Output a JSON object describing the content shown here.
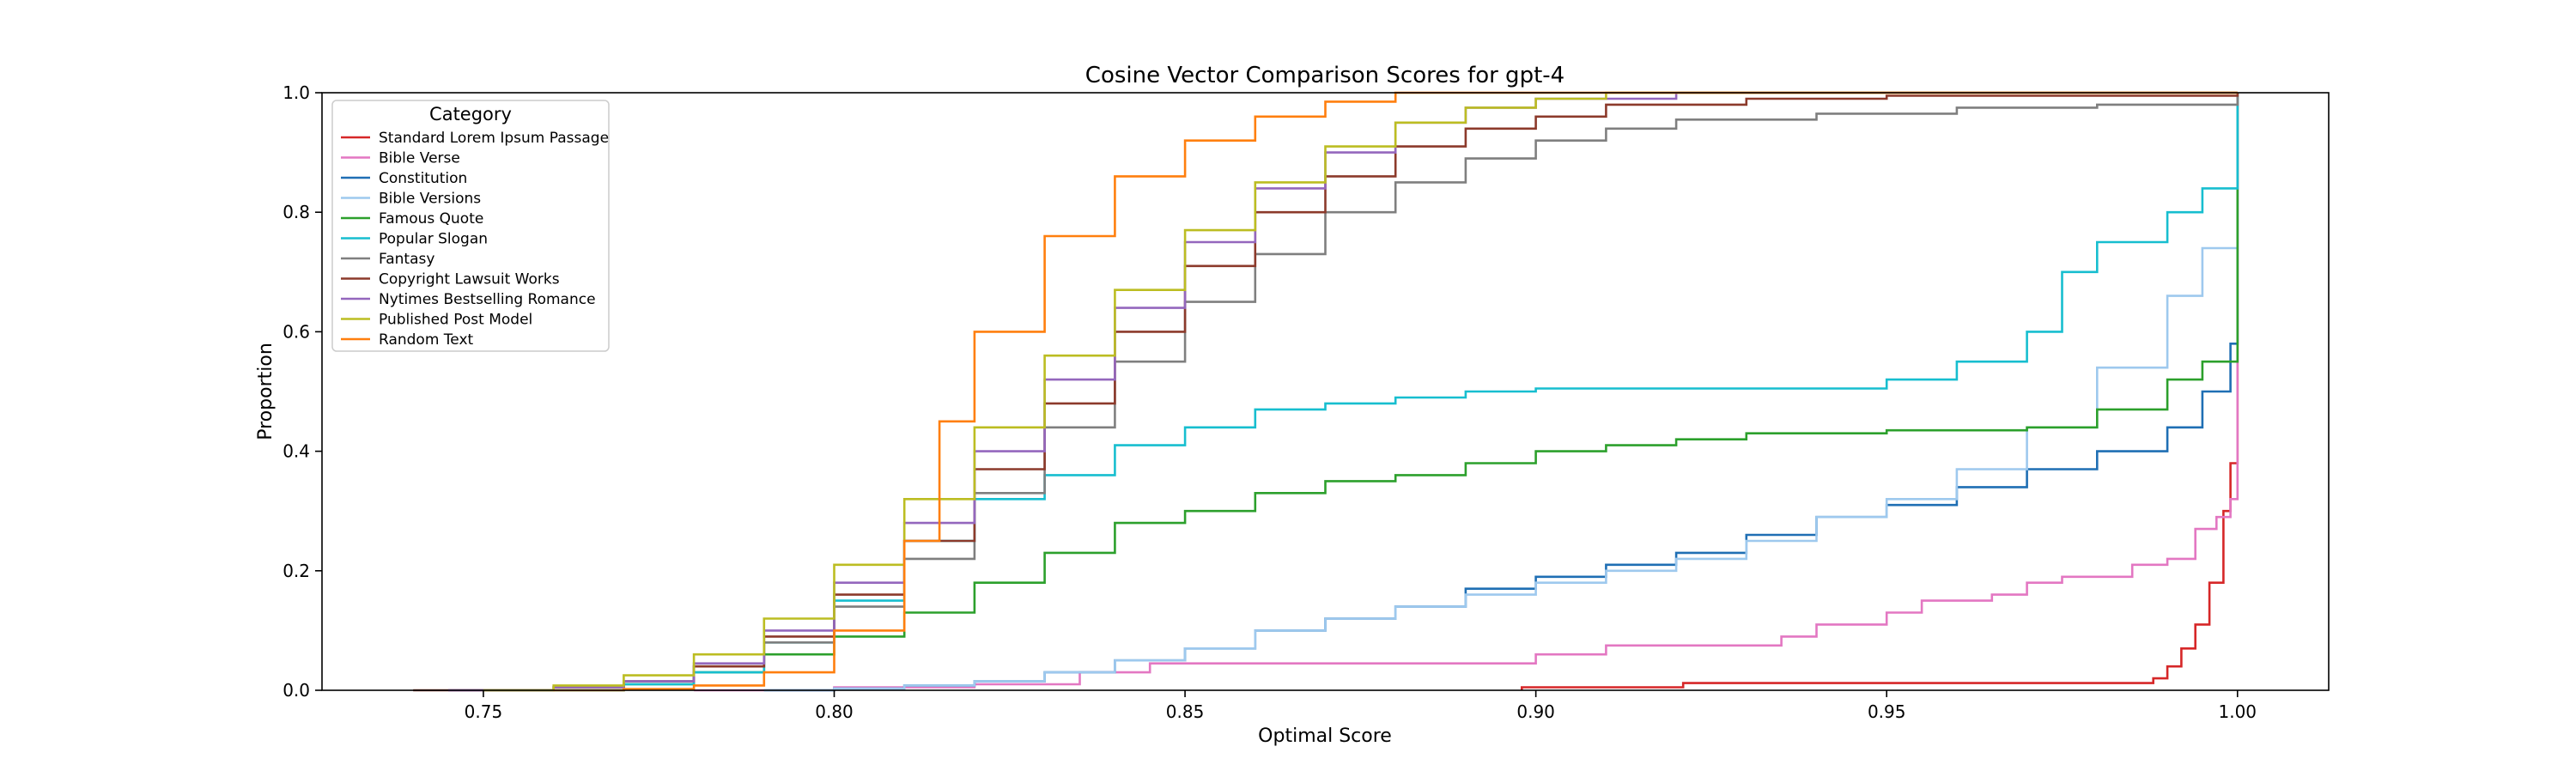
{
  "chart_data": {
    "type": "line",
    "title": "Cosine Vector Comparison Scores for gpt-4",
    "xlabel": "Optimal Score",
    "ylabel": "Proportion",
    "xlim": [
      0.727,
      1.013
    ],
    "ylim": [
      0.0,
      1.0
    ],
    "xticks": [
      0.75,
      0.8,
      0.85,
      0.9,
      0.95,
      1.0
    ],
    "xtick_labels": [
      "0.75",
      "0.80",
      "0.85",
      "0.90",
      "0.95",
      "1.00"
    ],
    "yticks": [
      0.0,
      0.2,
      0.4,
      0.6,
      0.8,
      1.0
    ],
    "ytick_labels": [
      "0.0",
      "0.2",
      "0.4",
      "0.6",
      "0.8",
      "1.0"
    ],
    "grid": false,
    "legend": {
      "title": "Category",
      "placement": "top-left"
    },
    "series": [
      {
        "name": "Standard Lorem Ipsum Passage",
        "color": "#d62728",
        "points": [
          [
            0.898,
            0.0
          ],
          [
            0.898,
            0.005
          ],
          [
            0.921,
            0.005
          ],
          [
            0.921,
            0.012
          ],
          [
            0.986,
            0.012
          ],
          [
            0.988,
            0.02
          ],
          [
            0.99,
            0.04
          ],
          [
            0.992,
            0.07
          ],
          [
            0.994,
            0.11
          ],
          [
            0.996,
            0.18
          ],
          [
            0.998,
            0.3
          ],
          [
            0.999,
            0.38
          ],
          [
            1.0,
            0.4
          ],
          [
            1.0,
            1.0
          ]
        ]
      },
      {
        "name": "Bible Verse",
        "color": "#e377c2",
        "points": [
          [
            0.78,
            0.0
          ],
          [
            0.8,
            0.005
          ],
          [
            0.82,
            0.01
          ],
          [
            0.835,
            0.03
          ],
          [
            0.84,
            0.03
          ],
          [
            0.845,
            0.045
          ],
          [
            0.89,
            0.045
          ],
          [
            0.9,
            0.06
          ],
          [
            0.91,
            0.075
          ],
          [
            0.935,
            0.09
          ],
          [
            0.94,
            0.11
          ],
          [
            0.95,
            0.13
          ],
          [
            0.955,
            0.15
          ],
          [
            0.965,
            0.16
          ],
          [
            0.97,
            0.18
          ],
          [
            0.975,
            0.19
          ],
          [
            0.985,
            0.21
          ],
          [
            0.99,
            0.22
          ],
          [
            0.994,
            0.27
          ],
          [
            0.997,
            0.29
          ],
          [
            0.999,
            0.32
          ],
          [
            1.0,
            0.35
          ],
          [
            1.0,
            1.0
          ]
        ]
      },
      {
        "name": "Constitution",
        "color": "#1f6fb4",
        "points": [
          [
            0.79,
            0.0
          ],
          [
            0.8,
            0.003
          ],
          [
            0.81,
            0.008
          ],
          [
            0.82,
            0.015
          ],
          [
            0.83,
            0.03
          ],
          [
            0.84,
            0.05
          ],
          [
            0.85,
            0.07
          ],
          [
            0.86,
            0.1
          ],
          [
            0.87,
            0.12
          ],
          [
            0.88,
            0.14
          ],
          [
            0.89,
            0.17
          ],
          [
            0.9,
            0.19
          ],
          [
            0.91,
            0.21
          ],
          [
            0.92,
            0.23
          ],
          [
            0.93,
            0.26
          ],
          [
            0.94,
            0.29
          ],
          [
            0.95,
            0.31
          ],
          [
            0.96,
            0.34
          ],
          [
            0.97,
            0.37
          ],
          [
            0.98,
            0.4
          ],
          [
            0.99,
            0.44
          ],
          [
            0.995,
            0.5
          ],
          [
            0.999,
            0.58
          ],
          [
            1.0,
            0.61
          ],
          [
            1.0,
            1.0
          ]
        ]
      },
      {
        "name": "Bible Versions",
        "color": "#9ec9ee",
        "points": [
          [
            0.79,
            0.0
          ],
          [
            0.8,
            0.003
          ],
          [
            0.81,
            0.008
          ],
          [
            0.82,
            0.015
          ],
          [
            0.83,
            0.03
          ],
          [
            0.84,
            0.05
          ],
          [
            0.85,
            0.07
          ],
          [
            0.86,
            0.1
          ],
          [
            0.87,
            0.12
          ],
          [
            0.88,
            0.14
          ],
          [
            0.89,
            0.16
          ],
          [
            0.9,
            0.18
          ],
          [
            0.91,
            0.2
          ],
          [
            0.92,
            0.22
          ],
          [
            0.93,
            0.25
          ],
          [
            0.94,
            0.29
          ],
          [
            0.95,
            0.32
          ],
          [
            0.96,
            0.37
          ],
          [
            0.97,
            0.44
          ],
          [
            0.98,
            0.54
          ],
          [
            0.99,
            0.66
          ],
          [
            0.995,
            0.74
          ],
          [
            1.0,
            0.84
          ],
          [
            1.0,
            1.0
          ]
        ]
      },
      {
        "name": "Famous Quote",
        "color": "#2ca02c",
        "points": [
          [
            0.75,
            0.0
          ],
          [
            0.77,
            0.01
          ],
          [
            0.78,
            0.03
          ],
          [
            0.79,
            0.06
          ],
          [
            0.8,
            0.09
          ],
          [
            0.81,
            0.13
          ],
          [
            0.82,
            0.18
          ],
          [
            0.83,
            0.23
          ],
          [
            0.84,
            0.28
          ],
          [
            0.85,
            0.3
          ],
          [
            0.86,
            0.33
          ],
          [
            0.87,
            0.35
          ],
          [
            0.88,
            0.36
          ],
          [
            0.89,
            0.38
          ],
          [
            0.9,
            0.4
          ],
          [
            0.91,
            0.41
          ],
          [
            0.92,
            0.42
          ],
          [
            0.93,
            0.43
          ],
          [
            0.95,
            0.435
          ],
          [
            0.97,
            0.44
          ],
          [
            0.98,
            0.47
          ],
          [
            0.99,
            0.52
          ],
          [
            0.995,
            0.55
          ],
          [
            1.0,
            0.59
          ],
          [
            1.0,
            1.0
          ]
        ]
      },
      {
        "name": "Popular Slogan",
        "color": "#17becf",
        "points": [
          [
            0.76,
            0.0
          ],
          [
            0.77,
            0.01
          ],
          [
            0.78,
            0.03
          ],
          [
            0.79,
            0.08
          ],
          [
            0.8,
            0.15
          ],
          [
            0.81,
            0.25
          ],
          [
            0.82,
            0.32
          ],
          [
            0.83,
            0.36
          ],
          [
            0.84,
            0.41
          ],
          [
            0.85,
            0.44
          ],
          [
            0.86,
            0.47
          ],
          [
            0.87,
            0.48
          ],
          [
            0.88,
            0.49
          ],
          [
            0.89,
            0.5
          ],
          [
            0.9,
            0.505
          ],
          [
            0.945,
            0.505
          ],
          [
            0.95,
            0.52
          ],
          [
            0.96,
            0.55
          ],
          [
            0.965,
            0.55
          ],
          [
            0.97,
            0.6
          ],
          [
            0.975,
            0.7
          ],
          [
            0.98,
            0.75
          ],
          [
            0.99,
            0.8
          ],
          [
            0.995,
            0.84
          ],
          [
            1.0,
            0.88
          ],
          [
            1.0,
            1.0
          ]
        ]
      },
      {
        "name": "Fantasy",
        "color": "#7f7f7f",
        "points": [
          [
            0.745,
            0.0
          ],
          [
            0.76,
            0.005
          ],
          [
            0.77,
            0.015
          ],
          [
            0.78,
            0.04
          ],
          [
            0.79,
            0.08
          ],
          [
            0.8,
            0.14
          ],
          [
            0.81,
            0.22
          ],
          [
            0.82,
            0.33
          ],
          [
            0.83,
            0.44
          ],
          [
            0.84,
            0.55
          ],
          [
            0.85,
            0.65
          ],
          [
            0.86,
            0.73
          ],
          [
            0.87,
            0.8
          ],
          [
            0.88,
            0.85
          ],
          [
            0.89,
            0.89
          ],
          [
            0.9,
            0.92
          ],
          [
            0.91,
            0.94
          ],
          [
            0.92,
            0.955
          ],
          [
            0.94,
            0.965
          ],
          [
            0.96,
            0.975
          ],
          [
            0.98,
            0.98
          ],
          [
            1.0,
            0.99
          ],
          [
            1.0,
            1.0
          ]
        ]
      },
      {
        "name": "Copyright Lawsuit Works",
        "color": "#8c3a2b",
        "points": [
          [
            0.74,
            0.0
          ],
          [
            0.76,
            0.005
          ],
          [
            0.77,
            0.015
          ],
          [
            0.78,
            0.04
          ],
          [
            0.79,
            0.09
          ],
          [
            0.8,
            0.16
          ],
          [
            0.81,
            0.25
          ],
          [
            0.82,
            0.37
          ],
          [
            0.83,
            0.48
          ],
          [
            0.84,
            0.6
          ],
          [
            0.85,
            0.71
          ],
          [
            0.86,
            0.8
          ],
          [
            0.87,
            0.86
          ],
          [
            0.88,
            0.91
          ],
          [
            0.89,
            0.94
          ],
          [
            0.9,
            0.96
          ],
          [
            0.91,
            0.98
          ],
          [
            0.93,
            0.99
          ],
          [
            0.95,
            0.995
          ],
          [
            1.0,
            1.0
          ]
        ]
      },
      {
        "name": "Nytimes Bestselling Romance",
        "color": "#9467bd",
        "points": [
          [
            0.745,
            0.0
          ],
          [
            0.76,
            0.005
          ],
          [
            0.77,
            0.015
          ],
          [
            0.78,
            0.045
          ],
          [
            0.79,
            0.1
          ],
          [
            0.8,
            0.18
          ],
          [
            0.81,
            0.28
          ],
          [
            0.82,
            0.4
          ],
          [
            0.83,
            0.52
          ],
          [
            0.84,
            0.64
          ],
          [
            0.85,
            0.75
          ],
          [
            0.86,
            0.84
          ],
          [
            0.87,
            0.9
          ],
          [
            0.88,
            0.95
          ],
          [
            0.89,
            0.975
          ],
          [
            0.9,
            0.99
          ],
          [
            0.92,
            1.0
          ],
          [
            1.0,
            1.0
          ]
        ]
      },
      {
        "name": "Published Post Model",
        "color": "#bcbd22",
        "points": [
          [
            0.75,
            0.0
          ],
          [
            0.76,
            0.008
          ],
          [
            0.77,
            0.025
          ],
          [
            0.78,
            0.06
          ],
          [
            0.79,
            0.12
          ],
          [
            0.8,
            0.21
          ],
          [
            0.81,
            0.32
          ],
          [
            0.82,
            0.44
          ],
          [
            0.83,
            0.56
          ],
          [
            0.84,
            0.67
          ],
          [
            0.85,
            0.77
          ],
          [
            0.86,
            0.85
          ],
          [
            0.87,
            0.91
          ],
          [
            0.88,
            0.95
          ],
          [
            0.89,
            0.975
          ],
          [
            0.9,
            0.99
          ],
          [
            0.91,
            1.0
          ],
          [
            1.0,
            1.0
          ]
        ]
      },
      {
        "name": "Random Text",
        "color": "#ff7f0e",
        "points": [
          [
            0.76,
            0.0
          ],
          [
            0.77,
            0.002
          ],
          [
            0.78,
            0.008
          ],
          [
            0.79,
            0.03
          ],
          [
            0.8,
            0.1
          ],
          [
            0.81,
            0.25
          ],
          [
            0.815,
            0.45
          ],
          [
            0.82,
            0.6
          ],
          [
            0.83,
            0.76
          ],
          [
            0.84,
            0.86
          ],
          [
            0.85,
            0.92
          ],
          [
            0.86,
            0.96
          ],
          [
            0.87,
            0.985
          ],
          [
            0.88,
            1.0
          ],
          [
            1.0,
            1.0
          ]
        ]
      }
    ]
  }
}
